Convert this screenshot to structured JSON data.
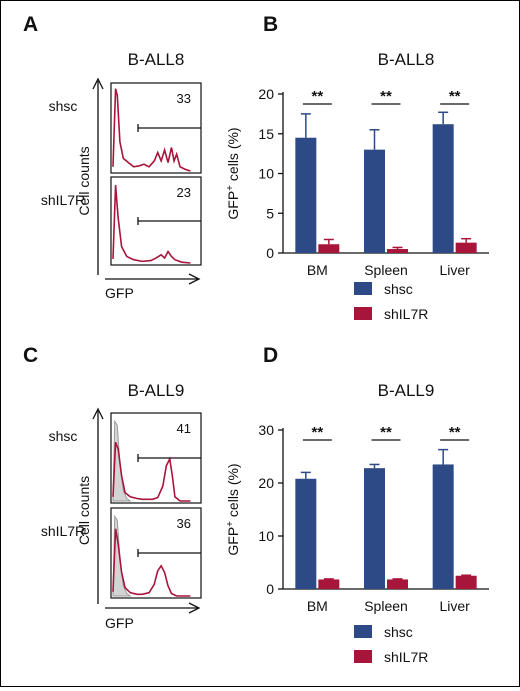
{
  "colors": {
    "shsc": "#2d4a86",
    "shIL7R": "#a8153a",
    "histogram_line": "#a8153a",
    "control_fill": "#d4d4d4"
  },
  "panels": {
    "A": "A",
    "B": "B",
    "C": "C",
    "D": "D"
  },
  "flow_panels": [
    {
      "title": "B-ALL8",
      "y_axis_label": "Cell counts",
      "x_axis_label": "GFP",
      "rows": [
        {
          "label": "shsc",
          "gate_value": "33",
          "grey_control": false,
          "curve": [
            [
              0,
              0.05
            ],
            [
              0.03,
              0.98
            ],
            [
              0.05,
              0.9
            ],
            [
              0.08,
              0.35
            ],
            [
              0.12,
              0.15
            ],
            [
              0.18,
              0.1
            ],
            [
              0.24,
              0.05
            ],
            [
              0.3,
              0.06
            ],
            [
              0.36,
              0.08
            ],
            [
              0.42,
              0.05
            ],
            [
              0.48,
              0.12
            ],
            [
              0.52,
              0.22
            ],
            [
              0.56,
              0.12
            ],
            [
              0.6,
              0.25
            ],
            [
              0.64,
              0.1
            ],
            [
              0.68,
              0.28
            ],
            [
              0.71,
              0.12
            ],
            [
              0.74,
              0.2
            ],
            [
              0.78,
              0.05
            ],
            [
              0.84,
              0.02
            ],
            [
              0.9,
              0.0
            ]
          ]
        },
        {
          "label": "shIL7R",
          "gate_value": "23",
          "grey_control": false,
          "curve": [
            [
              0,
              0.05
            ],
            [
              0.03,
              0.95
            ],
            [
              0.06,
              0.55
            ],
            [
              0.1,
              0.2
            ],
            [
              0.16,
              0.08
            ],
            [
              0.24,
              0.04
            ],
            [
              0.34,
              0.02
            ],
            [
              0.44,
              0.03
            ],
            [
              0.5,
              0.06
            ],
            [
              0.56,
              0.1
            ],
            [
              0.6,
              0.06
            ],
            [
              0.64,
              0.14
            ],
            [
              0.68,
              0.08
            ],
            [
              0.72,
              0.04
            ],
            [
              0.8,
              0.01
            ],
            [
              0.9,
              0.0
            ]
          ]
        }
      ]
    },
    {
      "title": "B-ALL9",
      "y_axis_label": "Cell counts",
      "x_axis_label": "GFP",
      "rows": [
        {
          "label": "shsc",
          "gate_value": "41",
          "grey_control": true,
          "curve": [
            [
              0,
              0.05
            ],
            [
              0.03,
              0.7
            ],
            [
              0.06,
              0.62
            ],
            [
              0.1,
              0.3
            ],
            [
              0.14,
              0.1
            ],
            [
              0.2,
              0.05
            ],
            [
              0.28,
              0.03
            ],
            [
              0.34,
              0.02
            ],
            [
              0.4,
              0.02
            ],
            [
              0.46,
              0.02
            ],
            [
              0.52,
              0.04
            ],
            [
              0.58,
              0.18
            ],
            [
              0.62,
              0.42
            ],
            [
              0.66,
              0.5
            ],
            [
              0.69,
              0.3
            ],
            [
              0.72,
              0.05
            ],
            [
              0.78,
              0.0
            ],
            [
              0.9,
              0.0
            ]
          ]
        },
        {
          "label": "shIL7R",
          "gate_value": "36",
          "grey_control": true,
          "curve": [
            [
              0,
              0.05
            ],
            [
              0.03,
              0.8
            ],
            [
              0.06,
              0.62
            ],
            [
              0.1,
              0.28
            ],
            [
              0.14,
              0.1
            ],
            [
              0.2,
              0.04
            ],
            [
              0.28,
              0.02
            ],
            [
              0.34,
              0.02
            ],
            [
              0.42,
              0.04
            ],
            [
              0.48,
              0.14
            ],
            [
              0.52,
              0.3
            ],
            [
              0.56,
              0.36
            ],
            [
              0.6,
              0.28
            ],
            [
              0.64,
              0.12
            ],
            [
              0.68,
              0.03
            ],
            [
              0.74,
              0.0
            ],
            [
              0.9,
              0.0
            ]
          ]
        }
      ]
    }
  ],
  "chart_data": [
    {
      "type": "bar",
      "title": "B-ALL8",
      "ylabel": "GFP+ cells (%)",
      "xlabel": "",
      "categories": [
        "BM",
        "Spleen",
        "Liver"
      ],
      "ylim": [
        0,
        20
      ],
      "yticks": [
        0,
        5,
        10,
        15,
        20
      ],
      "series": [
        {
          "name": "shsc",
          "values": [
            14.5,
            13.0,
            16.2
          ],
          "errors": [
            3.0,
            2.5,
            1.5
          ]
        },
        {
          "name": "shIL7R",
          "values": [
            1.1,
            0.5,
            1.3
          ],
          "errors": [
            0.6,
            0.2,
            0.5
          ]
        }
      ],
      "significance": [
        "**",
        "**",
        "**"
      ],
      "legend": "bottom"
    },
    {
      "type": "bar",
      "title": "B-ALL9",
      "ylabel": "GFP+ cells (%)",
      "xlabel": "",
      "categories": [
        "BM",
        "Spleen",
        "Liver"
      ],
      "ylim": [
        0,
        30
      ],
      "yticks": [
        0,
        10,
        20,
        30
      ],
      "series": [
        {
          "name": "shsc",
          "values": [
            20.8,
            22.8,
            23.5
          ],
          "errors": [
            1.2,
            0.7,
            2.8
          ]
        },
        {
          "name": "shIL7R",
          "values": [
            1.8,
            1.8,
            2.5
          ],
          "errors": [
            0.1,
            0.1,
            0.1
          ]
        }
      ],
      "significance": [
        "**",
        "**",
        "**"
      ],
      "legend": "bottom"
    }
  ]
}
